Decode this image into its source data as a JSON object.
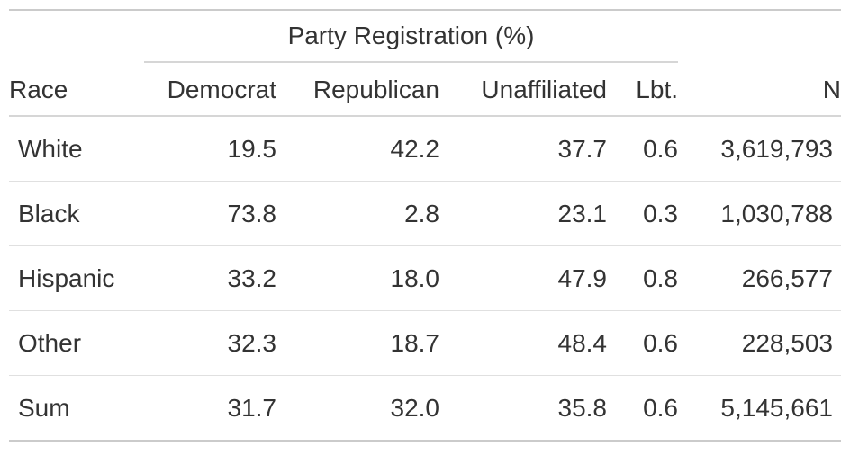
{
  "chart_data": {
    "type": "table",
    "title": "Party Registration (%)",
    "spanner": {
      "label": "Party Registration (%)",
      "covers": [
        "Democrat",
        "Republican",
        "Unaffiliated",
        "Lbt."
      ]
    },
    "columns": [
      "Race",
      "Democrat",
      "Republican",
      "Unaffiliated",
      "Lbt.",
      "N"
    ],
    "rows": [
      [
        "White",
        "19.5",
        "42.2",
        "37.7",
        "0.6",
        "3,619,793"
      ],
      [
        "Black",
        "73.8",
        "2.8",
        "23.1",
        "0.3",
        "1,030,788"
      ],
      [
        "Hispanic",
        "33.2",
        "18.0",
        "47.9",
        "0.8",
        "266,577"
      ],
      [
        "Other",
        "32.3",
        "18.7",
        "48.4",
        "0.6",
        "228,503"
      ],
      [
        "Sum",
        "31.7",
        "32.0",
        "35.8",
        "0.6",
        "5,145,661"
      ]
    ],
    "layout": {
      "column_alignments": [
        "left",
        "right",
        "right",
        "right",
        "right",
        "right"
      ],
      "grid": "horizontal-rules-only"
    }
  },
  "colors": {
    "text": "#333333",
    "outer_border": "#cbcbcb",
    "header_border": "#d6d6d6",
    "row_border": "#e0e0e0",
    "background": "#ffffff"
  }
}
